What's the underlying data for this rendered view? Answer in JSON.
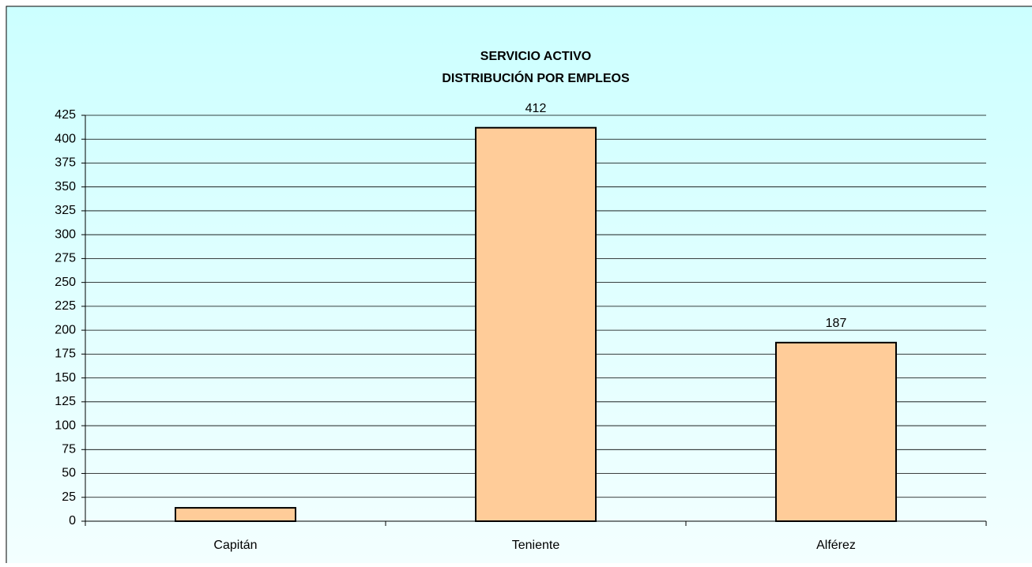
{
  "chart_data": {
    "type": "bar",
    "title": "SERVICIO ACTIVO",
    "subtitle": "DISTRIBUCIÓN POR EMPLEOS",
    "categories": [
      "Capitán",
      "Teniente",
      "Alférez"
    ],
    "values": [
      14,
      412,
      187
    ],
    "value_labels": [
      null,
      "412",
      "187"
    ],
    "color": "#ffcc99",
    "ylim": [
      0,
      425
    ],
    "yticks": [
      0,
      25,
      50,
      75,
      100,
      125,
      150,
      175,
      200,
      225,
      250,
      275,
      300,
      325,
      350,
      375,
      400,
      425
    ],
    "grid": true
  }
}
